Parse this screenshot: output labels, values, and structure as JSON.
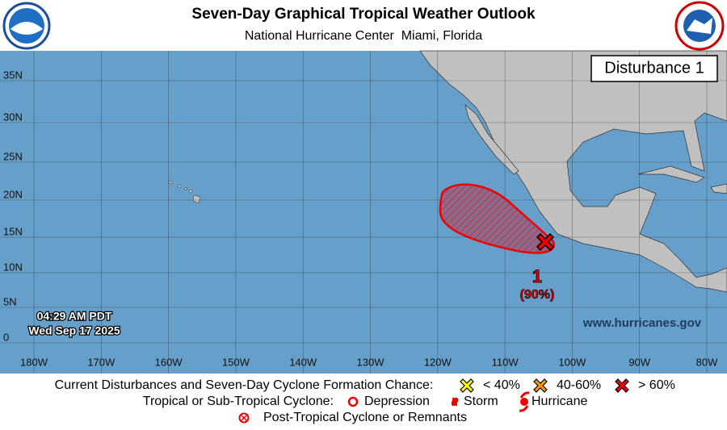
{
  "header": {
    "title": "Seven-Day Graphical Tropical Weather Outlook",
    "subtitle": "National Hurricane Center  Miami, Florida"
  },
  "map": {
    "panel_label": "Disturbance 1",
    "timestamp": [
      "04:29 AM PDT",
      "Wed Sep 17 2025"
    ],
    "website": "www.hurricanes.gov",
    "latitude_labels": [
      "35N",
      "30N",
      "25N",
      "20N",
      "15N",
      "10N",
      "5N",
      "0"
    ],
    "longitude_labels": [
      "180W",
      "170W",
      "160W",
      "150W",
      "140W",
      "130W",
      "120W",
      "110W",
      "100W",
      "90W",
      "80W"
    ],
    "disturbances": [
      {
        "label": "1",
        "chance": "(90%)"
      }
    ]
  },
  "legend": {
    "disturbances_title": "Current Disturbances and Seven-Day Cyclone Formation Chance:",
    "chances": [
      "< 40%",
      "40-60%",
      "> 60%"
    ],
    "cyclone_title": "Tropical or Sub-Tropical Cyclone:",
    "cyclone_types": [
      "Depression",
      "Storm",
      "Hurricane"
    ],
    "post_tropical": "Post-Tropical Cyclone or Remnants"
  }
}
